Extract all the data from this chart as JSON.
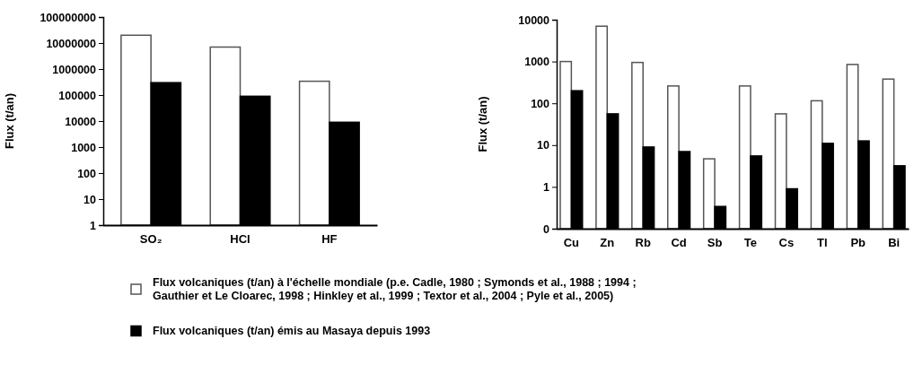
{
  "chart_data": [
    {
      "type": "bar",
      "ylabel": "Flux (t/an)",
      "categories": [
        "SO₂",
        "HCl",
        "HF"
      ],
      "log": true,
      "ylim": [
        1,
        100000000
      ],
      "yticks": [
        1,
        10,
        100,
        1000,
        10000,
        100000,
        1000000,
        10000000,
        100000000
      ],
      "legend": "bottom",
      "series": [
        {
          "name": "Flux volcaniques (t/an) à l'échelle mondiale (p.e. Cadle, 1980 ; Symonds et al., 1988 ; 1994 ; Gauthier et Le Cloarec, 1998 ; Hinkley et al., 1999 ; Textor et al., 2004 ; Pyle et al., 2005)",
          "color": "#ffffff",
          "values": [
            20000000,
            7000000,
            340000
          ]
        },
        {
          "name": "Flux volcaniques (t/an) émis au Masaya depuis 1993",
          "color": "#000000",
          "values": [
            300000,
            90000,
            9000
          ]
        }
      ]
    },
    {
      "type": "bar",
      "ylabel": "Flux (t/an)",
      "categories": [
        "Cu",
        "Zn",
        "Rb",
        "Cd",
        "Sb",
        "Te",
        "Cs",
        "Tl",
        "Pb",
        "Bi"
      ],
      "log": true,
      "ylim": [
        0.1,
        10000
      ],
      "yticks": [
        {
          "value": 0.1,
          "label": "0"
        },
        1,
        10,
        100,
        1000,
        10000
      ],
      "series": [
        {
          "color": "#ffffff",
          "values": [
            1000,
            7000,
            950,
            260,
            4.7,
            260,
            56,
            115,
            850,
            380
          ]
        },
        {
          "color": "#000000",
          "values": [
            200,
            56,
            9,
            7,
            0.34,
            5.5,
            0.9,
            11,
            12.6,
            3.2
          ]
        }
      ]
    }
  ]
}
